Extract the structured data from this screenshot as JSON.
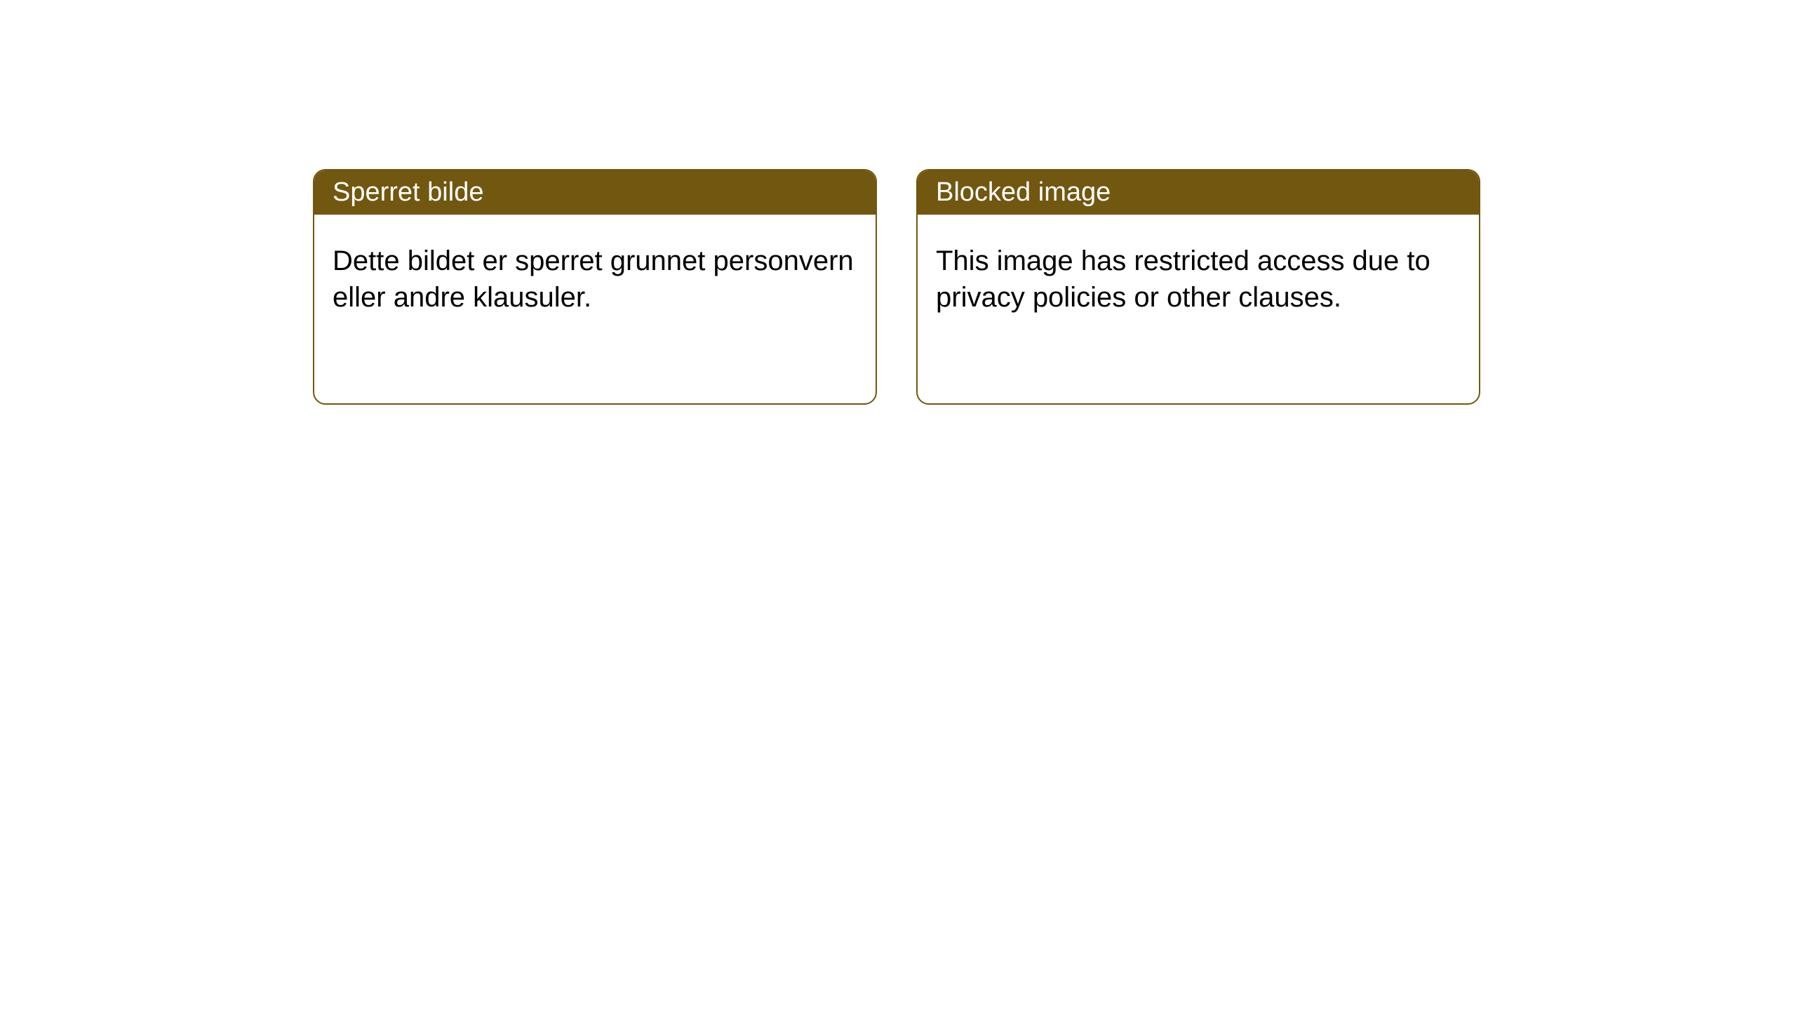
{
  "cards": [
    {
      "title": "Sperret bilde",
      "body": "Dette bildet er sperret grunnet personvern eller andre klausuler."
    },
    {
      "title": "Blocked image",
      "body": "This image has restricted access due to privacy policies or other clauses."
    }
  ],
  "styling": {
    "card_border_color": "#715710",
    "card_header_bg": "#715710",
    "card_header_text_color": "#ffffff",
    "card_body_bg": "#ffffff",
    "card_body_text_color": "#000000",
    "card_border_radius": 18,
    "header_fontsize": 38,
    "body_fontsize": 40,
    "page_bg": "#ffffff"
  }
}
